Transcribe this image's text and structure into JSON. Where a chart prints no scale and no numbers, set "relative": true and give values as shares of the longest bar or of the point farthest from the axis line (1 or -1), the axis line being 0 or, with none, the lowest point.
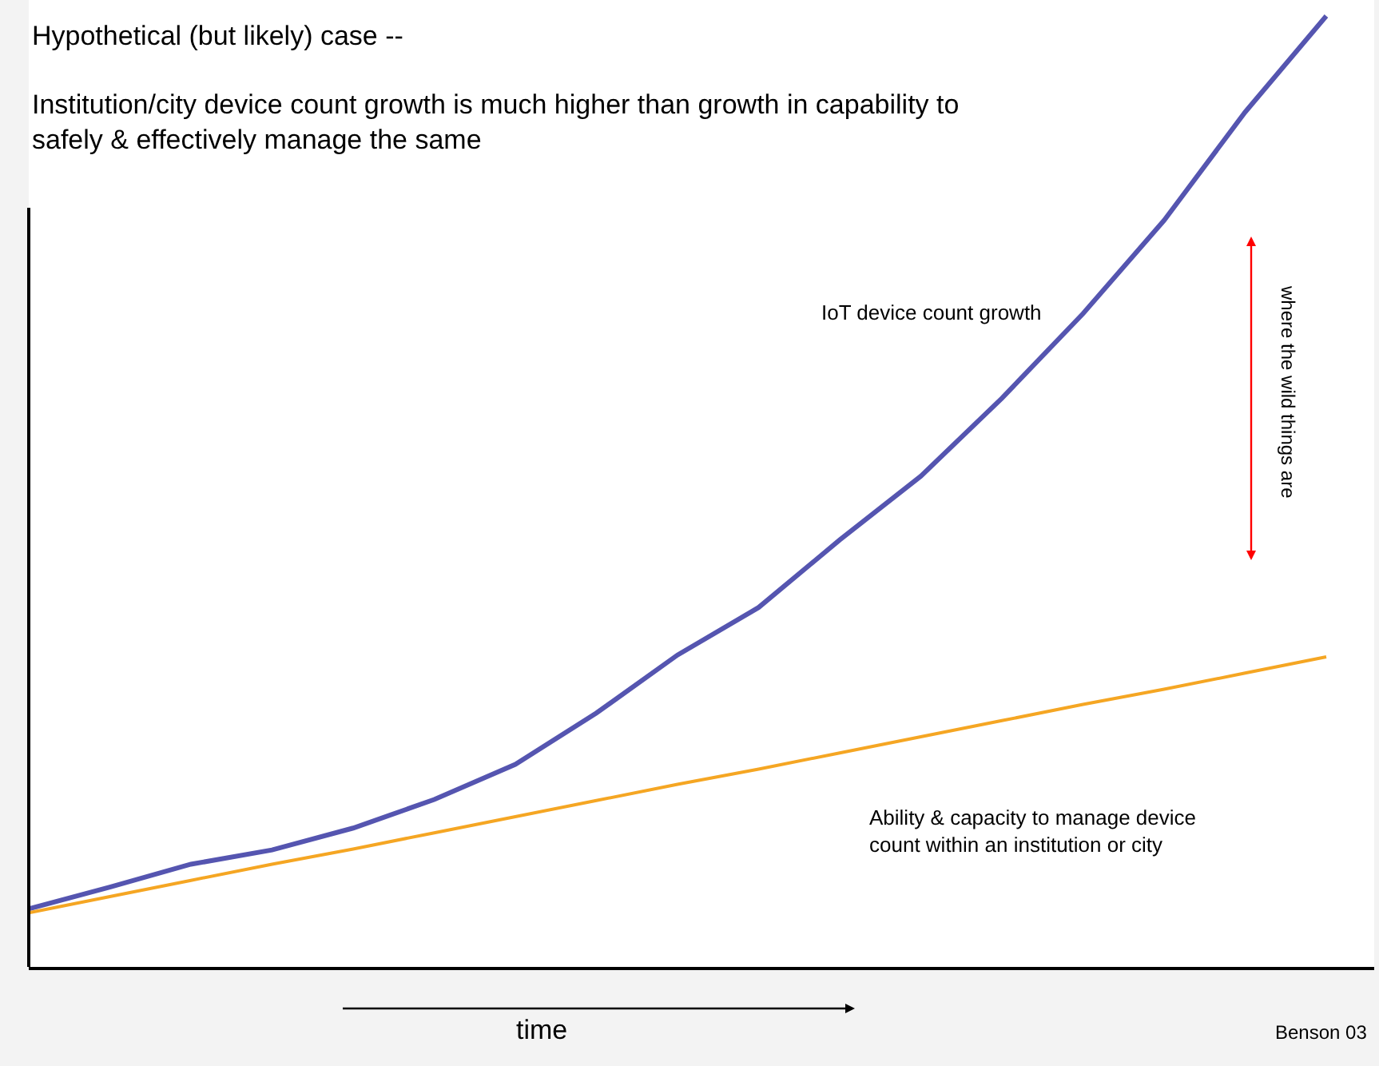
{
  "chart_data": {
    "type": "line",
    "relative": true,
    "title": "Hypothetical (but likely) case --",
    "subtitle": "Institution/city device count growth is much higher than growth in capability to safely & effectively manage the same",
    "xlabel": "time",
    "categories": [
      null,
      null,
      null,
      null,
      null,
      null,
      null,
      null,
      null,
      null,
      null,
      null,
      null,
      null,
      null,
      null,
      null
    ],
    "series": [
      {
        "name": "IoT device count growth",
        "color": "#5555b0",
        "values": [
          0.061,
          0.084,
          0.108,
          0.123,
          0.146,
          0.176,
          0.213,
          0.267,
          0.328,
          0.378,
          0.449,
          0.516,
          0.598,
          0.687,
          0.785,
          0.899,
          1.0
        ]
      },
      {
        "name": "Ability & capacity to manage device count within an institution or city",
        "color": "#f5a623",
        "values": [
          0.057,
          0.074,
          0.091,
          0.108,
          0.124,
          0.141,
          0.158,
          0.175,
          0.192,
          0.208,
          0.225,
          0.242,
          0.259,
          0.276,
          0.292,
          0.309,
          0.326
        ]
      }
    ],
    "annotations": [
      "where the wild things are",
      "Benson 03"
    ],
    "marker": "none",
    "line_style": "solid"
  }
}
